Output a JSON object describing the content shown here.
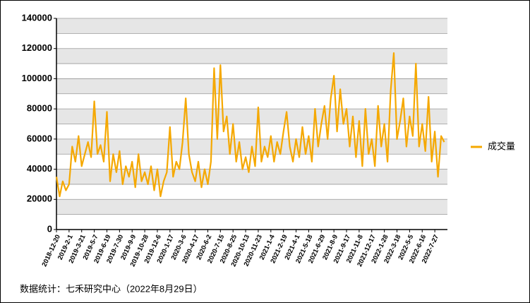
{
  "chart_data": {
    "type": "line",
    "categories": [
      "2018-12-20",
      null,
      null,
      null,
      "2019-2-1",
      null,
      null,
      null,
      "2019-3-21",
      null,
      null,
      null,
      "2019-5-7",
      null,
      null,
      null,
      "2019-6-19",
      null,
      null,
      null,
      "2019-7-30",
      null,
      null,
      null,
      "2019-9-9",
      null,
      null,
      null,
      "2019-10-28",
      null,
      null,
      null,
      "2019-12-6",
      null,
      null,
      null,
      "2020-1-17",
      null,
      null,
      null,
      "2020-3-6",
      null,
      null,
      null,
      "2020-4-17",
      null,
      null,
      null,
      "2020-6-2",
      null,
      null,
      null,
      "2020-7-15",
      null,
      null,
      null,
      "2020-8-25",
      null,
      null,
      null,
      "2020-10-13",
      null,
      null,
      null,
      "2020-11-23",
      null,
      null,
      null,
      "2021-1-4",
      null,
      null,
      null,
      "2021-2-19",
      null,
      null,
      null,
      "2021-4-1",
      null,
      null,
      null,
      "2021-5-18",
      null,
      null,
      null,
      "2021-6-29",
      null,
      null,
      null,
      "2021-8-9",
      null,
      null,
      null,
      "2021-9-17",
      null,
      null,
      null,
      "2021-11-8",
      null,
      null,
      null,
      "2021-12-17",
      null,
      null,
      null,
      "2022-1-28",
      null,
      null,
      null,
      "2022-3-18",
      null,
      null,
      null,
      "2022-5-5",
      null,
      null,
      null,
      "2022-6-16",
      null,
      null,
      null,
      "2022-7-27",
      null,
      null,
      null
    ],
    "series": [
      {
        "name": "成交量",
        "color": "#f5a800",
        "values": [
          35000,
          22000,
          32000,
          26000,
          30000,
          55000,
          45000,
          62000,
          42000,
          50000,
          58000,
          48000,
          85000,
          50000,
          56000,
          45000,
          78000,
          32000,
          50000,
          38000,
          52000,
          30000,
          42000,
          35000,
          45000,
          28000,
          50000,
          32000,
          38000,
          30000,
          42000,
          26000,
          40000,
          22000,
          32000,
          38000,
          68000,
          35000,
          45000,
          40000,
          58000,
          87000,
          50000,
          38000,
          32000,
          45000,
          28000,
          40000,
          30000,
          45000,
          107000,
          60000,
          109000,
          65000,
          75000,
          50000,
          70000,
          45000,
          58000,
          40000,
          48000,
          38000,
          55000,
          42000,
          81000,
          45000,
          55000,
          48000,
          62000,
          45000,
          58000,
          50000,
          65000,
          78000,
          55000,
          45000,
          60000,
          48000,
          68000,
          50000,
          62000,
          45000,
          80000,
          55000,
          70000,
          82000,
          60000,
          87000,
          102000,
          65000,
          93000,
          70000,
          80000,
          55000,
          75000,
          48000,
          72000,
          42000,
          80000,
          50000,
          60000,
          42000,
          82000,
          55000,
          70000,
          45000,
          92000,
          117000,
          60000,
          72000,
          87000,
          55000,
          75000,
          62000,
          110000,
          55000,
          70000,
          52000,
          88000,
          45000,
          65000,
          35000,
          62000,
          58000
        ]
      }
    ],
    "ylim": [
      0,
      140000
    ],
    "yticks": [
      0,
      20000,
      40000,
      60000,
      80000,
      100000,
      120000,
      140000
    ],
    "grid": true,
    "legend": "right",
    "source": "数据统计：七禾研究中心（2022年8月29日）"
  }
}
